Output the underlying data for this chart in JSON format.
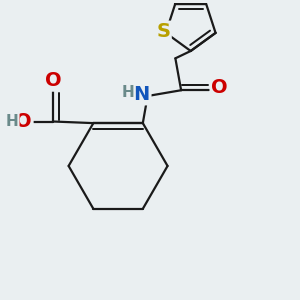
{
  "background_color": "#eaeff1",
  "line_color": "#1a1a1a",
  "line_width": 1.6,
  "atom_colors": {
    "S": "#b8a000",
    "O": "#cc0000",
    "N": "#1155bb",
    "H": "#6a8a8a"
  },
  "font_size_heavy": 14,
  "font_size_h": 11
}
